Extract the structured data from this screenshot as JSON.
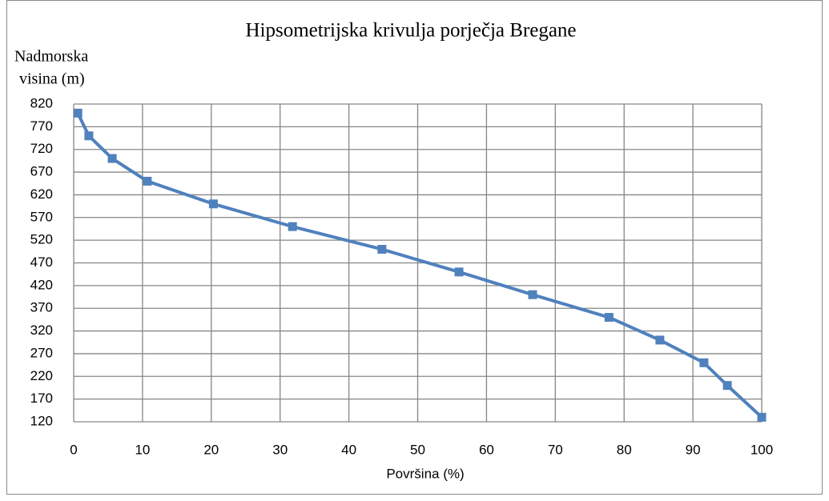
{
  "chart_data": {
    "type": "line",
    "title": "Hipsometrijska krivulja porječja Bregane",
    "ylabel": [
      "Nadmorska",
      "visina  (m)"
    ],
    "xlabel": "Površina (%)",
    "series": [
      {
        "name": "Hipsometrijska krivulja",
        "color": "#4f81bd",
        "x": [
          0.6,
          2.2,
          5.6,
          10.7,
          20.3,
          31.8,
          44.8,
          56.0,
          66.7,
          77.8,
          85.2,
          91.6,
          95.0,
          100
        ],
        "values": [
          800,
          750,
          700,
          650,
          600,
          550,
          500,
          450,
          400,
          350,
          300,
          250,
          200,
          130
        ]
      }
    ],
    "xlim": [
      0,
      100
    ],
    "xticks": [
      0,
      10,
      20,
      30,
      40,
      50,
      60,
      70,
      80,
      90,
      100
    ],
    "ylim": [
      120,
      820
    ],
    "yticks": [
      120,
      170,
      220,
      270,
      320,
      370,
      420,
      470,
      520,
      570,
      620,
      670,
      720,
      770,
      820
    ],
    "grid": true
  }
}
